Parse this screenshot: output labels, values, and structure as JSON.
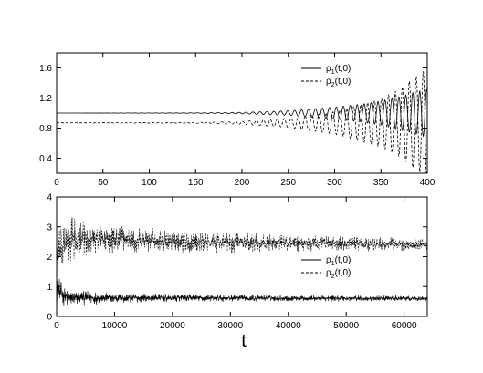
{
  "chart_data": [
    {
      "type": "line",
      "xlabel": "",
      "ylabel": "",
      "xlim": [
        0,
        400
      ],
      "ylim": [
        0.2,
        1.8
      ],
      "x_ticks": [
        0,
        50,
        100,
        150,
        200,
        250,
        300,
        350,
        400
      ],
      "y_ticks": [
        0.4,
        0.8,
        1.2,
        1.6
      ],
      "y_tick_labels": [
        "0.4",
        "0.8",
        "1.2",
        "1.6"
      ],
      "grid": false,
      "legend": "top-right",
      "series": [
        {
          "name": "ρ1(t,0)",
          "style": "solid",
          "baseline": 1.0,
          "growth_onset": 180,
          "envelope": [
            [
              0,
              0.0
            ],
            [
              150,
              0.003
            ],
            [
              200,
              0.01
            ],
            [
              250,
              0.03
            ],
            [
              300,
              0.08
            ],
            [
              330,
              0.12
            ],
            [
              350,
              0.16
            ],
            [
              370,
              0.22
            ],
            [
              385,
              0.27
            ],
            [
              400,
              0.32
            ]
          ],
          "period": 7.5,
          "phase_deg": 0
        },
        {
          "name": "ρ2(t,0)",
          "style": "dashed",
          "baseline": 0.87,
          "growth_onset": 180,
          "envelope": [
            [
              0,
              0.0
            ],
            [
              150,
              0.006
            ],
            [
              200,
              0.02
            ],
            [
              250,
              0.06
            ],
            [
              300,
              0.15
            ],
            [
              330,
              0.25
            ],
            [
              350,
              0.32
            ],
            [
              370,
              0.45
            ],
            [
              385,
              0.6
            ],
            [
              400,
              0.72
            ]
          ],
          "period": 7.5,
          "phase_deg": 180
        }
      ]
    },
    {
      "type": "line",
      "xlabel": "t",
      "ylabel": "",
      "xlim": [
        0,
        64000
      ],
      "ylim": [
        0,
        4
      ],
      "x_ticks": [
        0,
        10000,
        20000,
        30000,
        40000,
        50000,
        60000
      ],
      "y_ticks": [
        0,
        1,
        2,
        3,
        4
      ],
      "grid": false,
      "legend": "right",
      "series": [
        {
          "name": "ρ1(t,0)",
          "style": "solid",
          "mean": [
            [
              0,
              0.9
            ],
            [
              2000,
              0.6
            ],
            [
              4000,
              0.62
            ],
            [
              10000,
              0.62
            ],
            [
              64000,
              0.6
            ]
          ],
          "amplitude": [
            [
              0,
              0.5
            ],
            [
              2000,
              0.35
            ],
            [
              5000,
              0.25
            ],
            [
              10000,
              0.18
            ],
            [
              30000,
              0.12
            ],
            [
              64000,
              0.1
            ]
          ]
        },
        {
          "name": "ρ2(t,0)",
          "style": "dashed",
          "mean": [
            [
              0,
              1.9
            ],
            [
              1500,
              2.5
            ],
            [
              3000,
              2.6
            ],
            [
              10000,
              2.6
            ],
            [
              20000,
              2.5
            ],
            [
              40000,
              2.45
            ],
            [
              64000,
              2.4
            ]
          ],
          "amplitude": [
            [
              0,
              0.8
            ],
            [
              2500,
              0.9
            ],
            [
              6000,
              0.55
            ],
            [
              12000,
              0.45
            ],
            [
              25000,
              0.38
            ],
            [
              40000,
              0.3
            ],
            [
              64000,
              0.22
            ]
          ]
        }
      ]
    }
  ]
}
